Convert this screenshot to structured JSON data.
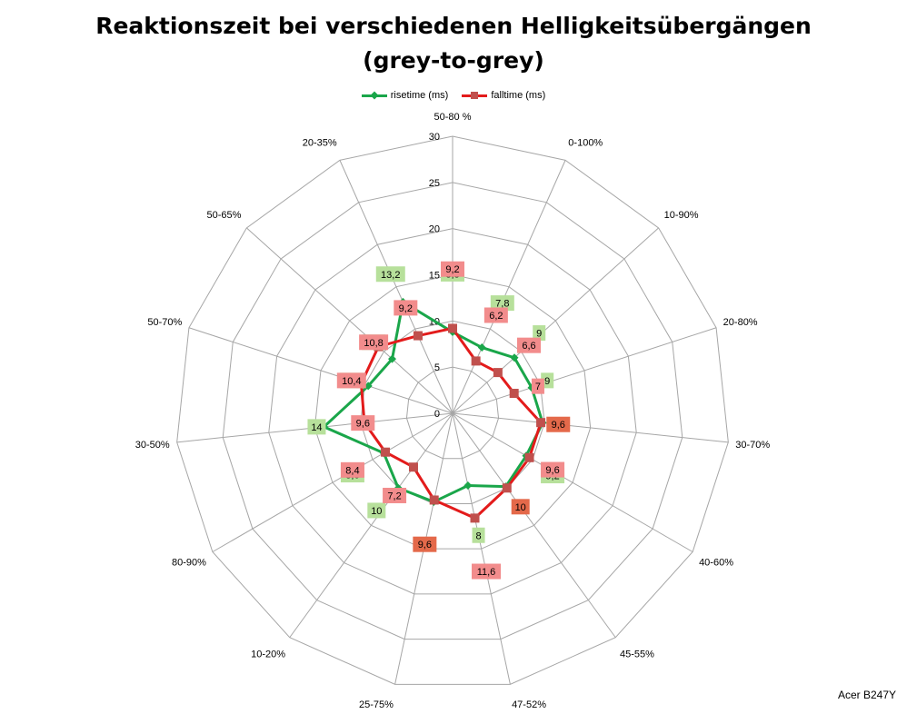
{
  "title_line1": "Reaktionszeit bei verschiedenen Helligkeitsübergängen",
  "title_line2": "(grey-to-grey)",
  "credit": "Acer B247Y",
  "colors": {
    "rise": "#1aa64a",
    "fall": "#e31b1b",
    "fall_marker": "#c0504d",
    "rise_label_bg": "#b7e09b",
    "fall_label_bg": "#f28c8c",
    "fall_label_bg_dark": "#e4694a",
    "grid": "#a6a6a6"
  },
  "chart_data": {
    "type": "radar",
    "title": "Reaktionszeit bei verschiedenen Helligkeitsübergängen (grey-to-grey)",
    "categories": [
      "50-80 %",
      "0-100%",
      "10-90%",
      "20-80%",
      "30-70%",
      "40-60%",
      "45-55%",
      "47-52%",
      "25-75%",
      "10-20%",
      "80-90%",
      "30-50%",
      "50-70%",
      "50-65%",
      "20-35%"
    ],
    "rlim": [
      0,
      30
    ],
    "ticks": [
      "0",
      "5",
      "10",
      "15",
      "20",
      "25",
      "30"
    ],
    "tick_values": [
      0,
      5,
      10,
      15,
      20,
      25,
      30
    ],
    "legend_position": "top",
    "series": [
      {
        "name": "risetime (ms)",
        "values": [
          8.8,
          7.8,
          9,
          9,
          9.8,
          9.2,
          9.8,
          8,
          9.8,
          10,
          8.6,
          14,
          9.6,
          8.8,
          13.2
        ],
        "labels": [
          "8,8",
          "7,8",
          "9",
          "9",
          "",
          "9,2",
          "",
          "8",
          "",
          "10",
          "8,6",
          "14",
          "9,6",
          "8,8",
          "13,2"
        ]
      },
      {
        "name": "falltime (ms)",
        "values": [
          9.2,
          6.2,
          6.6,
          7,
          9.6,
          9.6,
          10,
          11.6,
          9.6,
          7.2,
          8.4,
          9.6,
          10.4,
          10.8,
          9.2
        ],
        "labels": [
          "9,2",
          "6,2",
          "6,6",
          "7",
          "9,6",
          "9,6",
          "10",
          "11,6",
          "9,6",
          "7,2",
          "8,4",
          "9,6",
          "10,4",
          "10,8",
          "9,2"
        ]
      }
    ]
  }
}
